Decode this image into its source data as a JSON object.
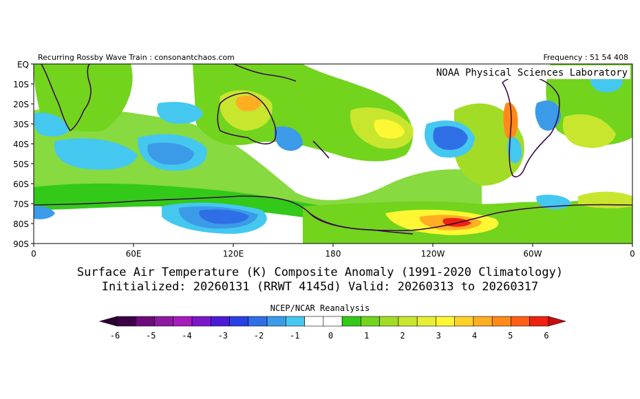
{
  "header": {
    "left_text": "Recurring Rossby Wave Train : consonantchaos.com",
    "right_text": "Frequency : 51 54 408",
    "lab_label": "NOAA Physical Sciences Laboratory"
  },
  "titles": {
    "line1": "Surface Air Temperature (K) Composite Anomaly (1991-2020 Climatology)",
    "line2": "Initialized: 20260131 (RRWT 4145d) Valid: 20260313 to 20260317"
  },
  "reanalysis_label": "NCEP/NCAR Reanalysis",
  "axes": {
    "y_labels": [
      "EQ",
      "10S",
      "20S",
      "30S",
      "40S",
      "50S",
      "60S",
      "70S",
      "80S",
      "90S"
    ],
    "x_labels": [
      "0",
      "60E",
      "120E",
      "180",
      "120W",
      "60W",
      "0"
    ]
  },
  "colorbar": {
    "tick_labels": [
      "-6",
      "-5",
      "-4",
      "-3",
      "-2",
      "-1",
      "0",
      "1",
      "2",
      "3",
      "4",
      "5",
      "6"
    ],
    "colors": [
      "#3d0046",
      "#6e0b7a",
      "#8c1aa0",
      "#a71bbd",
      "#7a16c8",
      "#4b1ad8",
      "#2a3fe4",
      "#2f6fe6",
      "#3b9be8",
      "#45c8ef",
      "#ffffff",
      "#ffffff",
      "#33c919",
      "#72d41d",
      "#a3dc27",
      "#c8e62e",
      "#e8ee36",
      "#fff733",
      "#ffd22a",
      "#ffae22",
      "#ff8a1a",
      "#ff5e16",
      "#ee2210"
    ],
    "under_color": "#2a0030",
    "over_color": "#c80c0c"
  },
  "legend_colors": {
    "cold_strong": "#2a3fe4",
    "cold_mid": "#2f6fe6",
    "cold_weak": "#3b9be8",
    "cold_faint": "#45c8ef",
    "warm_faint": "#33c919",
    "warm_weak": "#72d41d",
    "warm_mid": "#c8e62e",
    "warm_yellow": "#fff733",
    "warm_orange": "#ffae22",
    "warm_red": "#ee2210",
    "coast": "#3a0a45"
  }
}
